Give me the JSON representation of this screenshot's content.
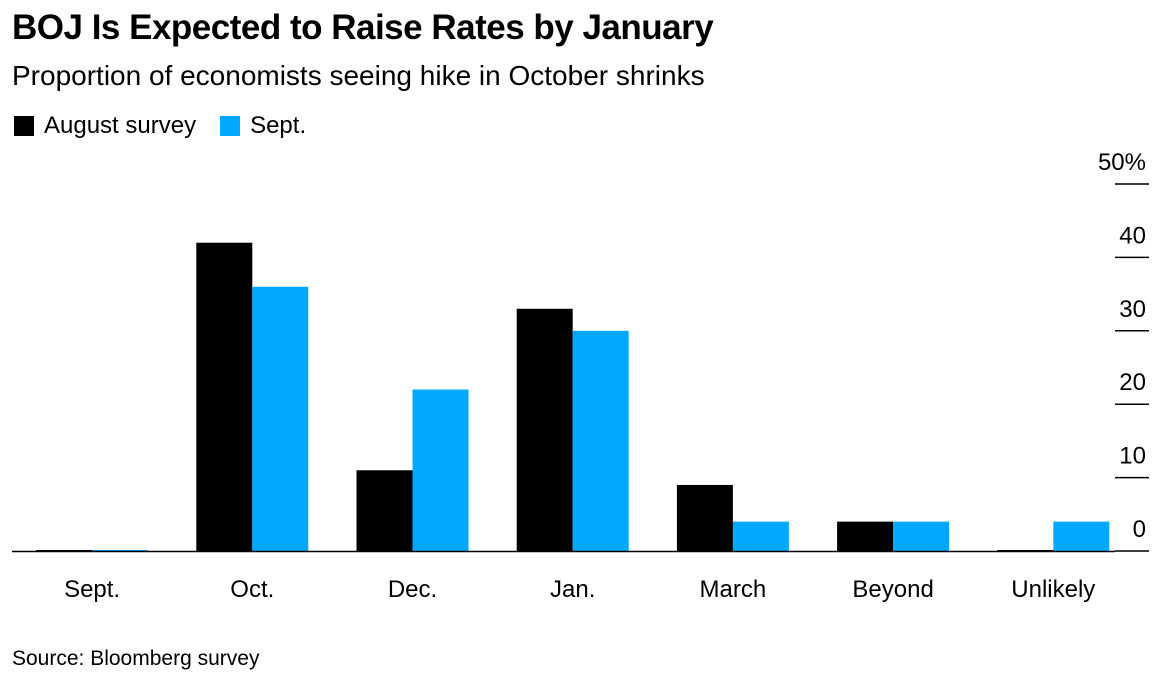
{
  "title": "BOJ Is Expected to Raise Rates by January",
  "subtitle": "Proportion of economists seeing hike in October shrinks",
  "legend": [
    {
      "label": "August survey",
      "color": "#000000"
    },
    {
      "label": "Sept.",
      "color": "#00A9FF"
    }
  ],
  "source": "Source: Bloomberg survey",
  "chart_data": {
    "type": "bar",
    "categories": [
      "Sept.",
      "Oct.",
      "Dec.",
      "Jan.",
      "March",
      "Beyond",
      "Unlikely"
    ],
    "series": [
      {
        "name": "August survey",
        "color": "#000000",
        "values": [
          0,
          42,
          11,
          33,
          9,
          4,
          0
        ]
      },
      {
        "name": "Sept.",
        "color": "#00A9FF",
        "values": [
          0,
          36,
          22,
          30,
          4,
          4,
          4
        ]
      }
    ],
    "title": "BOJ Is Expected to Raise Rates by January",
    "subtitle": "Proportion of economists seeing hike in October shrinks",
    "xlabel": "",
    "ylabel": "",
    "ylim": [
      0,
      50
    ],
    "yticks": [
      0,
      10,
      20,
      30,
      40,
      50
    ],
    "ytick_labels": [
      "0",
      "10",
      "20",
      "30",
      "40",
      "50%"
    ],
    "yaxis_position": "right",
    "grid": false,
    "legend_position": "top-left"
  }
}
